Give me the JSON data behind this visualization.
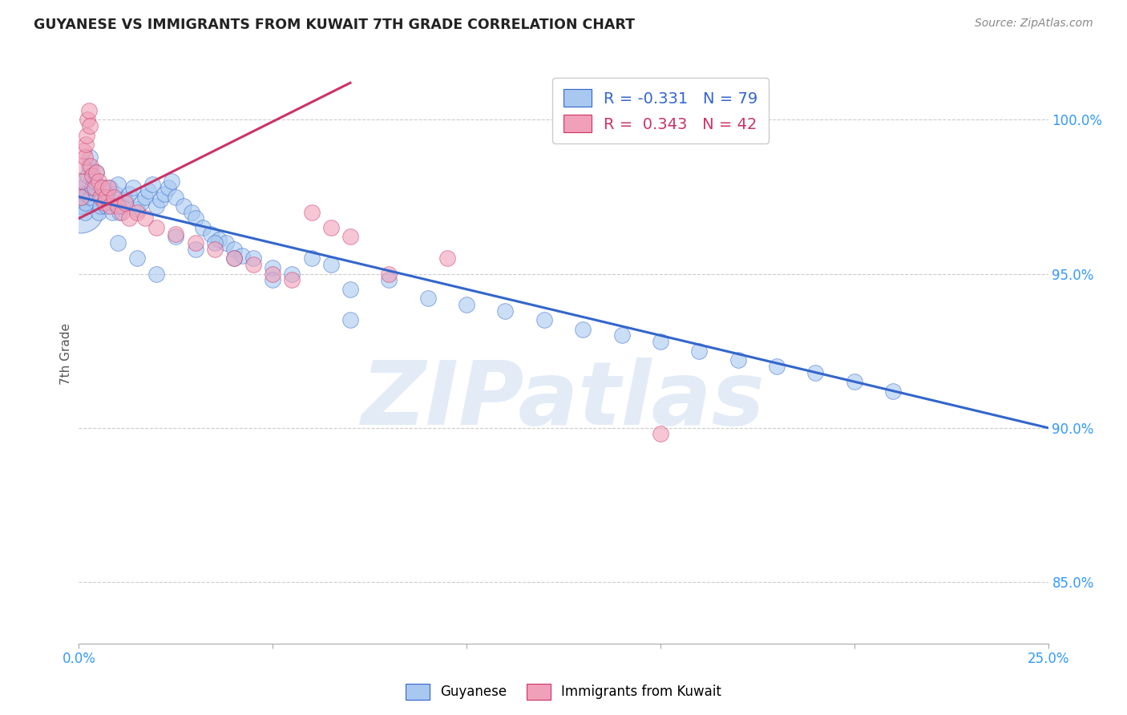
{
  "title": "GUYANESE VS IMMIGRANTS FROM KUWAIT 7TH GRADE CORRELATION CHART",
  "source": "Source: ZipAtlas.com",
  "ylabel": "7th Grade",
  "xlim": [
    0.0,
    25.0
  ],
  "ylim": [
    83.0,
    101.8
  ],
  "yticks": [
    85.0,
    90.0,
    95.0,
    100.0
  ],
  "ytick_labels": [
    "85.0%",
    "90.0%",
    "95.0%",
    "100.0%"
  ],
  "xticks": [
    0.0,
    5.0,
    10.0,
    15.0,
    20.0,
    25.0
  ],
  "xtick_labels": [
    "0.0%",
    "",
    "",
    "",
    "",
    "25.0%"
  ],
  "blue_R": -0.331,
  "blue_N": 79,
  "pink_R": 0.343,
  "pink_N": 42,
  "blue_color": "#A8C8F0",
  "pink_color": "#F0A0B8",
  "blue_line_color": "#3366CC",
  "pink_line_color": "#CC3366",
  "watermark": "ZIPatlas",
  "blue_line_x0": 0.0,
  "blue_line_y0": 97.5,
  "blue_line_x1": 25.0,
  "blue_line_y1": 90.0,
  "pink_line_x0": 0.0,
  "pink_line_y0": 96.8,
  "pink_line_x1": 7.0,
  "pink_line_y1": 101.2,
  "blue_scatter_x": [
    0.05,
    0.08,
    0.1,
    0.12,
    0.15,
    0.18,
    0.2,
    0.22,
    0.25,
    0.28,
    0.3,
    0.35,
    0.4,
    0.45,
    0.5,
    0.55,
    0.6,
    0.65,
    0.7,
    0.75,
    0.8,
    0.85,
    0.9,
    0.95,
    1.0,
    1.05,
    1.1,
    1.2,
    1.3,
    1.4,
    1.5,
    1.6,
    1.7,
    1.8,
    1.9,
    2.0,
    2.1,
    2.2,
    2.3,
    2.4,
    2.5,
    2.7,
    2.9,
    3.0,
    3.2,
    3.4,
    3.6,
    3.8,
    4.0,
    4.2,
    4.5,
    5.0,
    5.5,
    6.0,
    6.5,
    7.0,
    8.0,
    9.0,
    10.0,
    11.0,
    12.0,
    13.0,
    14.0,
    15.0,
    16.0,
    17.0,
    18.0,
    19.0,
    20.0,
    21.0,
    1.0,
    1.5,
    2.0,
    2.5,
    3.0,
    3.5,
    4.0,
    5.0,
    7.0
  ],
  "blue_scatter_y": [
    97.2,
    97.5,
    97.8,
    98.0,
    97.0,
    97.3,
    97.6,
    98.2,
    98.5,
    98.8,
    97.5,
    97.8,
    98.0,
    98.3,
    97.0,
    97.2,
    97.5,
    97.8,
    97.2,
    97.5,
    97.8,
    97.0,
    97.3,
    97.6,
    97.9,
    97.0,
    97.2,
    97.4,
    97.6,
    97.8,
    97.1,
    97.3,
    97.5,
    97.7,
    97.9,
    97.2,
    97.4,
    97.6,
    97.8,
    98.0,
    97.5,
    97.2,
    97.0,
    96.8,
    96.5,
    96.3,
    96.1,
    96.0,
    95.8,
    95.6,
    95.5,
    95.2,
    95.0,
    95.5,
    95.3,
    94.5,
    94.8,
    94.2,
    94.0,
    93.8,
    93.5,
    93.2,
    93.0,
    92.8,
    92.5,
    92.2,
    92.0,
    91.8,
    91.5,
    91.2,
    96.0,
    95.5,
    95.0,
    96.2,
    95.8,
    96.0,
    95.5,
    94.8,
    93.5
  ],
  "blue_scatter_sizes": [
    200,
    200,
    200,
    200,
    200,
    200,
    200,
    200,
    200,
    200,
    200,
    200,
    200,
    200,
    200,
    200,
    200,
    200,
    200,
    200,
    200,
    200,
    200,
    200,
    200,
    200,
    200,
    200,
    200,
    200,
    200,
    200,
    200,
    200,
    200,
    200,
    200,
    200,
    200,
    200,
    200,
    200,
    200,
    200,
    200,
    200,
    200,
    200,
    200,
    200,
    200,
    200,
    200,
    200,
    200,
    200,
    200,
    200,
    200,
    200,
    200,
    200,
    200,
    200,
    200,
    200,
    200,
    200,
    200,
    200,
    200,
    200,
    200,
    200,
    200,
    200,
    200,
    200,
    200
  ],
  "pink_scatter_x": [
    0.05,
    0.08,
    0.1,
    0.12,
    0.15,
    0.18,
    0.2,
    0.22,
    0.25,
    0.28,
    0.3,
    0.35,
    0.4,
    0.45,
    0.5,
    0.55,
    0.6,
    0.65,
    0.7,
    0.75,
    0.8,
    0.9,
    1.0,
    1.1,
    1.2,
    1.3,
    1.5,
    1.7,
    2.0,
    2.5,
    3.0,
    3.5,
    4.0,
    4.5,
    5.0,
    5.5,
    6.0,
    6.5,
    7.0,
    8.0,
    9.5,
    15.0
  ],
  "pink_scatter_y": [
    97.5,
    98.0,
    98.5,
    99.0,
    98.8,
    99.2,
    99.5,
    100.0,
    100.3,
    99.8,
    98.5,
    98.2,
    97.8,
    98.3,
    98.0,
    97.5,
    97.8,
    97.3,
    97.5,
    97.8,
    97.2,
    97.5,
    97.2,
    97.0,
    97.3,
    96.8,
    97.0,
    96.8,
    96.5,
    96.3,
    96.0,
    95.8,
    95.5,
    95.3,
    95.0,
    94.8,
    97.0,
    96.5,
    96.2,
    95.0,
    95.5,
    89.8
  ],
  "large_blue_x": 0.03,
  "large_blue_y": 97.1,
  "large_blue_size": 1800
}
